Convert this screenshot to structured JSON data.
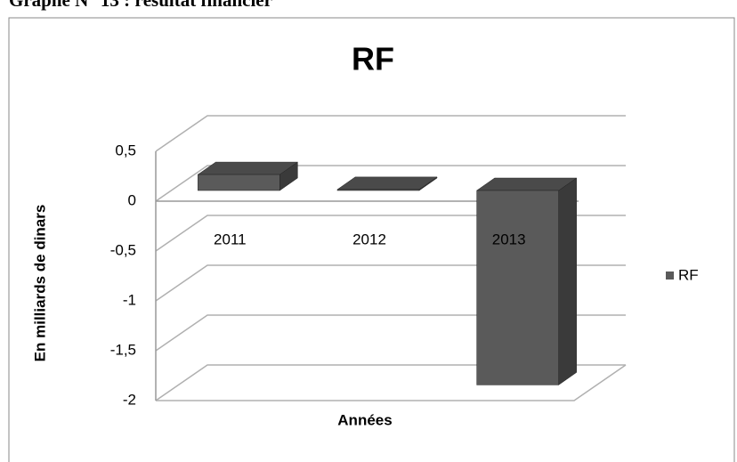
{
  "heading": "Graphe N° 13 : résultat financier",
  "chart_data": {
    "type": "bar3d",
    "title": "RF",
    "y_label": "En milliards de dinars",
    "x_label": "Années",
    "categories": [
      "2011",
      "2012",
      "2013"
    ],
    "series": [
      {
        "name": "RF",
        "color": "#5a5a5a",
        "values": [
          0.16,
          0.01,
          -1.95
        ]
      }
    ],
    "ylim": [
      -2,
      0.5
    ],
    "yticks": [
      {
        "value": 0.5,
        "label": "0,5"
      },
      0,
      {
        "value": -0.5,
        "label": "-0,5"
      },
      -1,
      {
        "value": -1.5,
        "label": "-1,5"
      },
      -2
    ],
    "grid": true,
    "legend": "right"
  }
}
